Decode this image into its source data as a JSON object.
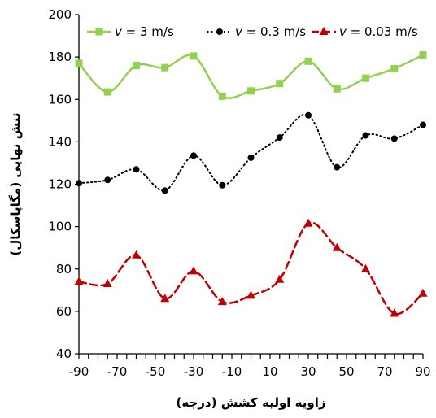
{
  "chart_data": {
    "type": "line",
    "xlabel": "زاویه اولیه کشش (درجه)",
    "ylabel": "تنش نهایی (مگاپاسکال)",
    "xlim": [
      -90,
      90
    ],
    "ylim": [
      40,
      200
    ],
    "x_ticks": [
      -90,
      -70,
      -50,
      -30,
      -10,
      10,
      30,
      50,
      70,
      90
    ],
    "y_ticks": [
      40,
      60,
      80,
      100,
      120,
      140,
      160,
      180,
      200
    ],
    "x_minor_step": 5,
    "grid": false,
    "legend_position": "top",
    "x": [
      -90,
      -75,
      -60,
      -45,
      -30,
      -15,
      0,
      15,
      30,
      45,
      60,
      75,
      90
    ],
    "series": [
      {
        "name": "v = 3 m/s",
        "legend_var": "v",
        "legend_rest": " = 3 m/s",
        "color": "#92d050",
        "style": "solid",
        "marker": "square",
        "values": [
          177,
          163.5,
          176,
          175,
          180.5,
          161.5,
          164,
          167.5,
          178,
          165,
          170,
          174.5,
          181
        ]
      },
      {
        "name": "v = 0.3 m/s",
        "legend_var": "v",
        "legend_rest": " = 0.3 m/s",
        "color": "#000000",
        "style": "dotted",
        "marker": "circle",
        "values": [
          120.5,
          122,
          127,
          117,
          133.5,
          119.5,
          132.5,
          142,
          152.5,
          128,
          143,
          141.5,
          148
        ]
      },
      {
        "name": "v = 0.03 m/s",
        "legend_var": "v",
        "legend_rest": " = 0.03 m/s",
        "color": "#c00000",
        "style": "dashed",
        "marker": "triangle",
        "values": [
          74,
          73,
          86.5,
          66,
          79,
          64.5,
          67.5,
          75,
          101.5,
          90,
          80,
          59,
          68.5
        ]
      }
    ]
  }
}
